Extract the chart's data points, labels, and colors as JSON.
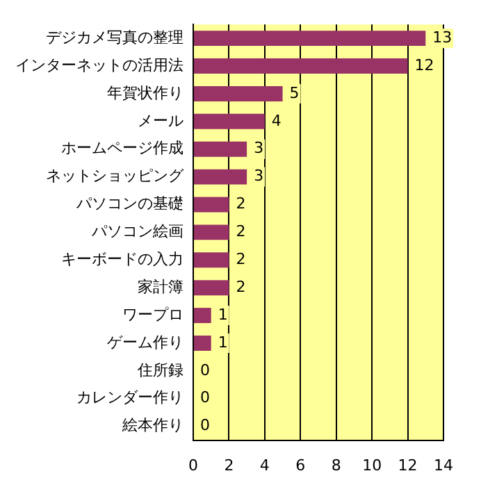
{
  "chart_data": {
    "type": "bar",
    "orientation": "horizontal",
    "categories": [
      "デジカメ写真の整理",
      "インターネットの活用法",
      "年賀状作り",
      "メール",
      "ホームページ作成",
      "ネットショッピング",
      "パソコンの基礎",
      "パソコン絵画",
      "キーボードの入力",
      "家計簿",
      "ワープロ",
      "ゲーム作り",
      "住所録",
      "カレンダー作り",
      "絵本作り"
    ],
    "values": [
      13,
      12,
      5,
      4,
      3,
      3,
      2,
      2,
      2,
      2,
      1,
      1,
      0,
      0,
      0
    ],
    "color": "#993366",
    "xlim": [
      0,
      14
    ],
    "xticks": [
      0,
      2,
      4,
      6,
      8,
      10,
      12,
      14
    ],
    "grid": "x",
    "legend": false,
    "data_labels": true
  }
}
